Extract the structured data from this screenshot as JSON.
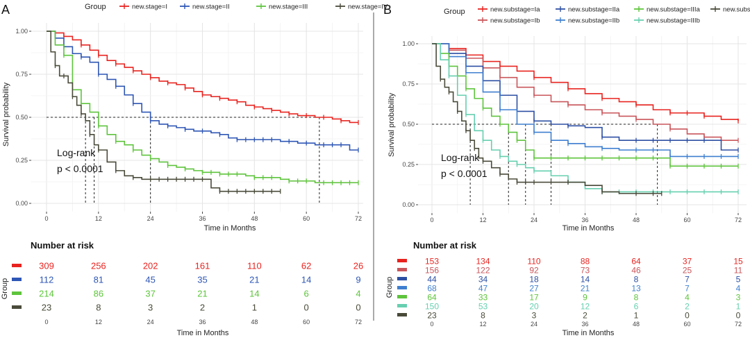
{
  "panels": [
    {
      "letter": "A",
      "legend_title": "Group",
      "logrank_line1": "Log-rank",
      "logrank_line2": "p < 0.0001",
      "risk_title": "Number at risk",
      "risk_ylabel": "Group",
      "risk_xlabel": "Time in Months",
      "chart_data": {
        "type": "line",
        "subtype": "kaplan-meier",
        "xlabel": "Time in Months",
        "ylabel": "Survival probability",
        "xlim": [
          0,
          72
        ],
        "ylim": [
          0,
          1
        ],
        "xticks": [
          "0",
          "12",
          "24",
          "36",
          "48",
          "60",
          "72"
        ],
        "yticks": [
          "0.00",
          "0.25",
          "0.50",
          "0.75",
          "1.00"
        ],
        "grid": true,
        "legend": "top",
        "median_times": [
          9,
          11,
          24,
          63
        ],
        "series": [
          {
            "name": "new.stage=I",
            "color": "#e8231f",
            "x": [
              0,
              2,
              4,
              6,
              8,
              10,
              12,
              14,
              16,
              18,
              20,
              22,
              24,
              26,
              28,
              30,
              32,
              34,
              36,
              38,
              40,
              42,
              44,
              46,
              48,
              50,
              52,
              54,
              56,
              58,
              60,
              62,
              64,
              66,
              68,
              70,
              72
            ],
            "y": [
              1,
              0.99,
              0.97,
              0.95,
              0.92,
              0.89,
              0.86,
              0.83,
              0.81,
              0.79,
              0.77,
              0.75,
              0.73,
              0.71,
              0.7,
              0.69,
              0.67,
              0.65,
              0.63,
              0.62,
              0.61,
              0.6,
              0.59,
              0.57,
              0.56,
              0.55,
              0.54,
              0.53,
              0.52,
              0.51,
              0.51,
              0.5,
              0.5,
              0.49,
              0.48,
              0.47,
              0.47
            ],
            "risk": [
              "309",
              "256",
              "202",
              "161",
              "110",
              "62",
              "26"
            ]
          },
          {
            "name": "new.stage=II",
            "color": "#2e56b5",
            "x": [
              0,
              2,
              4,
              6,
              8,
              10,
              12,
              14,
              16,
              18,
              20,
              22,
              24,
              26,
              28,
              30,
              32,
              34,
              36,
              38,
              40,
              42,
              44,
              46,
              48,
              50,
              52,
              54,
              56,
              58,
              60,
              62,
              64,
              66,
              68,
              70,
              72
            ],
            "y": [
              1,
              0.96,
              0.91,
              0.87,
              0.85,
              0.82,
              0.75,
              0.72,
              0.68,
              0.63,
              0.58,
              0.53,
              0.48,
              0.46,
              0.45,
              0.44,
              0.43,
              0.42,
              0.42,
              0.41,
              0.4,
              0.38,
              0.37,
              0.37,
              0.37,
              0.37,
              0.37,
              0.36,
              0.36,
              0.35,
              0.35,
              0.34,
              0.34,
              0.34,
              0.34,
              0.31,
              0.31
            ],
            "risk": [
              "112",
              "81",
              "45",
              "35",
              "21",
              "14",
              "9"
            ]
          },
          {
            "name": "new.stage=III",
            "color": "#5ec43c",
            "x": [
              0,
              2,
              4,
              6,
              8,
              10,
              12,
              14,
              16,
              18,
              20,
              22,
              24,
              26,
              28,
              30,
              32,
              34,
              36,
              38,
              40,
              42,
              44,
              46,
              48,
              50,
              52,
              54,
              56,
              58,
              60,
              62,
              64,
              66,
              68,
              70,
              72
            ],
            "y": [
              1,
              0.92,
              0.86,
              0.66,
              0.58,
              0.53,
              0.45,
              0.4,
              0.36,
              0.34,
              0.31,
              0.28,
              0.26,
              0.24,
              0.22,
              0.21,
              0.2,
              0.19,
              0.18,
              0.18,
              0.17,
              0.17,
              0.17,
              0.16,
              0.15,
              0.15,
              0.15,
              0.14,
              0.13,
              0.13,
              0.13,
              0.12,
              0.12,
              0.12,
              0.12,
              0.12,
              0.12
            ],
            "risk": [
              "214",
              "86",
              "37",
              "21",
              "14",
              "6",
              "4"
            ]
          },
          {
            "name": "new.stage=IV",
            "color": "#4a4a3a",
            "x": [
              0,
              1,
              2,
              3,
              4,
              5,
              6,
              7,
              8,
              9,
              10,
              11,
              12,
              14,
              16,
              18,
              20,
              22,
              24,
              26,
              28,
              30,
              32,
              34,
              36,
              38,
              40,
              42,
              44,
              46,
              48,
              50,
              52,
              54
            ],
            "y": [
              1,
              0.88,
              0.8,
              0.74,
              0.74,
              0.7,
              0.62,
              0.57,
              0.52,
              0.48,
              0.4,
              0.34,
              0.31,
              0.24,
              0.19,
              0.16,
              0.15,
              0.14,
              0.14,
              0.14,
              0.14,
              0.14,
              0.14,
              0.14,
              0.14,
              0.09,
              0.07,
              0.07,
              0.07,
              0.07,
              0.07,
              0.07,
              0.07,
              0.07
            ],
            "risk": [
              "23",
              "8",
              "3",
              "2",
              "1",
              "0",
              "0"
            ]
          }
        ]
      }
    },
    {
      "letter": "B",
      "legend_title": "Group",
      "logrank_line1": "Log-rank",
      "logrank_line2": "p < 0.0001",
      "risk_title": "Number at risk",
      "risk_ylabel": "Group",
      "risk_xlabel": "Time in Months",
      "chart_data": {
        "type": "line",
        "subtype": "kaplan-meier",
        "xlabel": "Time in Months",
        "ylabel": "Survival probability",
        "xlim": [
          0,
          72
        ],
        "ylim": [
          0,
          1
        ],
        "xticks": [
          "0",
          "12",
          "24",
          "36",
          "48",
          "60",
          "72"
        ],
        "yticks": [
          "0.00",
          "0.25",
          "0.50",
          "0.75",
          "1.00"
        ],
        "grid": true,
        "legend": "top",
        "median_times": [
          9,
          18,
          22,
          28,
          53
        ],
        "series": [
          {
            "name": "new.substage=Ia",
            "color": "#e8231f",
            "x": [
              0,
              4,
              8,
              12,
              16,
              20,
              24,
              28,
              32,
              36,
              40,
              44,
              48,
              52,
              56,
              60,
              64,
              68,
              72
            ],
            "y": [
              1,
              0.97,
              0.93,
              0.89,
              0.86,
              0.83,
              0.79,
              0.76,
              0.72,
              0.69,
              0.66,
              0.64,
              0.62,
              0.59,
              0.57,
              0.57,
              0.55,
              0.53,
              0.52
            ],
            "risk": [
              "153",
              "134",
              "110",
              "88",
              "64",
              "37",
              "15"
            ]
          },
          {
            "name": "new.substage=Ib",
            "color": "#c9555a",
            "x": [
              0,
              4,
              8,
              12,
              16,
              20,
              24,
              28,
              32,
              36,
              40,
              44,
              48,
              52,
              56,
              60,
              64,
              68,
              72
            ],
            "y": [
              1,
              0.96,
              0.91,
              0.85,
              0.79,
              0.73,
              0.68,
              0.64,
              0.62,
              0.59,
              0.57,
              0.55,
              0.53,
              0.5,
              0.47,
              0.44,
              0.42,
              0.4,
              0.4
            ],
            "risk": [
              "156",
              "122",
              "92",
              "73",
              "46",
              "25",
              "11"
            ]
          },
          {
            "name": "new.substage=IIa",
            "color": "#2c4fa3",
            "x": [
              0,
              4,
              8,
              12,
              16,
              20,
              24,
              28,
              32,
              36,
              40,
              44,
              48,
              52,
              56,
              60,
              64,
              68,
              72
            ],
            "y": [
              1,
              0.94,
              0.86,
              0.77,
              0.68,
              0.58,
              0.52,
              0.5,
              0.49,
              0.48,
              0.42,
              0.4,
              0.4,
              0.4,
              0.4,
              0.4,
              0.4,
              0.34,
              0.34
            ],
            "risk": [
              "44",
              "34",
              "18",
              "14",
              "8",
              "7",
              "5"
            ]
          },
          {
            "name": "new.substage=IIb",
            "color": "#3f7fd0",
            "x": [
              0,
              4,
              8,
              12,
              16,
              20,
              24,
              28,
              32,
              36,
              40,
              44,
              48,
              52,
              56,
              60,
              64,
              68,
              72
            ],
            "y": [
              1,
              0.92,
              0.82,
              0.7,
              0.59,
              0.5,
              0.45,
              0.4,
              0.38,
              0.36,
              0.35,
              0.34,
              0.34,
              0.34,
              0.3,
              0.3,
              0.3,
              0.3,
              0.3
            ],
            "risk": [
              "68",
              "47",
              "27",
              "21",
              "13",
              "7",
              "4"
            ]
          },
          {
            "name": "new.substage=IIIa",
            "color": "#5ec43c",
            "x": [
              0,
              2,
              4,
              6,
              8,
              10,
              12,
              14,
              16,
              18,
              20,
              22,
              24,
              28,
              32,
              36,
              40,
              44,
              48,
              52,
              56,
              60,
              64,
              68,
              72
            ],
            "y": [
              1,
              0.94,
              0.86,
              0.8,
              0.72,
              0.66,
              0.6,
              0.55,
              0.5,
              0.45,
              0.4,
              0.34,
              0.29,
              0.29,
              0.29,
              0.29,
              0.29,
              0.29,
              0.29,
              0.29,
              0.24,
              0.24,
              0.24,
              0.24,
              0.24
            ],
            "risk": [
              "64",
              "33",
              "17",
              "9",
              "8",
              "4",
              "3"
            ]
          },
          {
            "name": "new.substage=IIIb",
            "color": "#66cfaf",
            "x": [
              0,
              2,
              4,
              6,
              8,
              10,
              12,
              14,
              16,
              18,
              20,
              22,
              24,
              28,
              32,
              36,
              40,
              44,
              48,
              52,
              56,
              60,
              64,
              68,
              72
            ],
            "y": [
              1,
              0.9,
              0.8,
              0.68,
              0.56,
              0.46,
              0.4,
              0.34,
              0.3,
              0.27,
              0.25,
              0.23,
              0.21,
              0.18,
              0.14,
              0.1,
              0.08,
              0.08,
              0.08,
              0.08,
              0.08,
              0.08,
              0.08,
              0.08,
              0.08
            ],
            "risk": [
              "150",
              "53",
              "20",
              "12",
              "6",
              "2",
              "1"
            ]
          },
          {
            "name": "new.substage=IIIc",
            "color": "#4a4a3a",
            "x": [
              0,
              1,
              2,
              3,
              4,
              5,
              6,
              7,
              8,
              9,
              10,
              11,
              12,
              14,
              16,
              18,
              20,
              22,
              24,
              28,
              32,
              36,
              40,
              44,
              48,
              52,
              54
            ],
            "y": [
              1,
              0.86,
              0.78,
              0.73,
              0.7,
              0.64,
              0.58,
              0.52,
              0.46,
              0.4,
              0.35,
              0.29,
              0.27,
              0.23,
              0.19,
              0.16,
              0.14,
              0.14,
              0.14,
              0.14,
              0.14,
              0.12,
              0.08,
              0.07,
              0.07,
              0.07,
              0.07
            ],
            "risk": [
              "23",
              "8",
              "3",
              "2",
              "1",
              "0",
              "0"
            ]
          }
        ]
      }
    }
  ]
}
